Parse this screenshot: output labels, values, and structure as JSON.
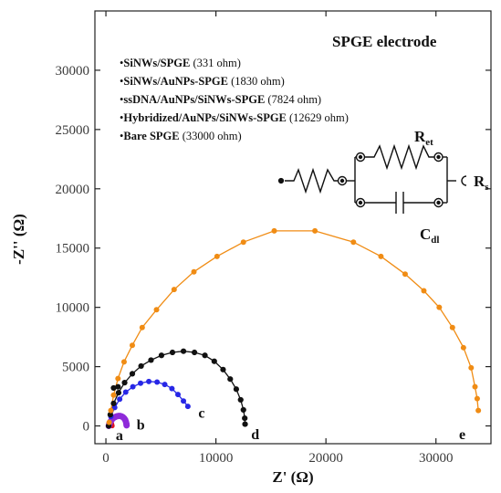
{
  "chart_data": {
    "type": "scatter",
    "title": "SPGE electrode",
    "xlabel": "Z' (Ω)",
    "ylabel": "-Z'' (Ω)",
    "xlim": [
      -1000,
      35000
    ],
    "ylim": [
      -1500,
      35000
    ],
    "xticks": [
      "0",
      "10000",
      "20000",
      "30000"
    ],
    "xtick_values": [
      0,
      10000,
      20000,
      30000
    ],
    "yticks": [
      "0",
      "5000",
      "10000",
      "15000",
      "20000",
      "25000",
      "30000"
    ],
    "ytick_values": [
      0,
      5000,
      10000,
      15000,
      20000,
      25000,
      30000
    ],
    "legend_items": [
      {
        "name": "SiNWs/SPGE",
        "value": "(331 ohm)"
      },
      {
        "name": "SiNWs/AuNPs-SPGE",
        "value": "(1830 ohm)"
      },
      {
        "name": "ssDNA/AuNPs/SiNWs-SPGE",
        "value": "(7824 ohm)"
      },
      {
        "name": "Hybridized/AuNPs/SiNWs-SPGE",
        "value": "(12629 ohm)"
      },
      {
        "name": "Bare SPGE",
        "value": "(33000 ohm)"
      }
    ],
    "circuit_labels": {
      "ret_main": "R",
      "ret_sub": "et",
      "rs_main": "R",
      "rs_sub": "s",
      "cdl_main": "C",
      "cdl_sub": "dl"
    },
    "series": [
      {
        "label": "a",
        "color": "#e0151b",
        "marker_size": 2.6,
        "label_pos": [
          900,
          -1200
        ],
        "x": [
          200,
          230,
          270,
          320,
          380,
          440,
          500,
          540,
          560,
          580
        ],
        "y": [
          0,
          150,
          280,
          360,
          390,
          360,
          280,
          160,
          60,
          0
        ]
      },
      {
        "label": "b",
        "color": "#8e2bd9",
        "marker_size": 3.5,
        "label_pos": [
          2800,
          -300
        ],
        "x": [
          260,
          330,
          420,
          540,
          680,
          830,
          990,
          1140,
          1290,
          1430,
          1560,
          1670,
          1760,
          1820,
          1860,
          1880
        ],
        "y": [
          0,
          190,
          370,
          530,
          660,
          750,
          810,
          840,
          835,
          800,
          730,
          630,
          500,
          350,
          190,
          50
        ]
      },
      {
        "label": "c",
        "color": "#2727e6",
        "marker_size": 3.0,
        "label_pos": [
          8400,
          700
        ],
        "x": [
          250,
          450,
          800,
          1250,
          1800,
          2450,
          3150,
          3900,
          4650,
          5350,
          6000,
          6550,
          7050,
          7450
        ],
        "y": [
          0,
          800,
          1550,
          2250,
          2850,
          3300,
          3600,
          3750,
          3700,
          3500,
          3150,
          2650,
          2100,
          1650
        ]
      },
      {
        "label": "d",
        "color": "#111111",
        "marker_size": 3.1,
        "label_pos": [
          13200,
          -1100
        ],
        "x": [
          250,
          400,
          700,
          1150,
          1700,
          2400,
          3200,
          4100,
          5050,
          6050,
          7050,
          8050,
          9000,
          9850,
          10650,
          11300,
          11850,
          12250,
          12500,
          12620,
          12650
        ],
        "y": [
          0,
          950,
          1900,
          2800,
          3650,
          4400,
          5050,
          5550,
          5950,
          6200,
          6300,
          6200,
          5950,
          5450,
          4750,
          3950,
          3100,
          2200,
          1350,
          650,
          150
        ],
        "extra_points": [
          [
            700,
            3200
          ],
          [
            1100,
            3300
          ]
        ]
      },
      {
        "label": "e",
        "color": "#f08c14",
        "marker_size": 3.0,
        "label_pos": [
          32100,
          -1100
        ],
        "x": [
          300,
          450,
          700,
          1100,
          1650,
          2400,
          3300,
          4600,
          6200,
          8000,
          10100,
          12500,
          15300,
          19000,
          22500,
          25000,
          27200,
          28900,
          30300,
          31500,
          32500,
          33200,
          33550,
          33750,
          33850
        ],
        "y": [
          300,
          1300,
          2600,
          4000,
          5400,
          6800,
          8300,
          9800,
          11500,
          13000,
          14300,
          15500,
          16450,
          16450,
          15500,
          14300,
          12800,
          11400,
          10000,
          8300,
          6600,
          4900,
          3300,
          2300,
          1300
        ]
      }
    ]
  }
}
